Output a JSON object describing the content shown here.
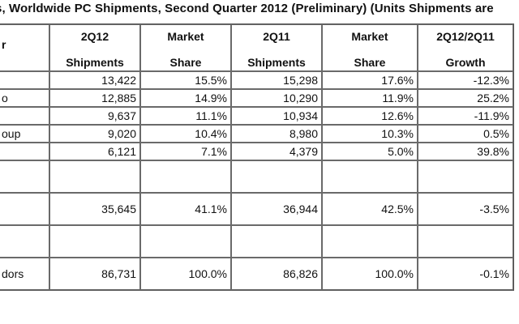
{
  "title": "s, Worldwide PC Shipments, Second Quarter 2012 (Preliminary) (Units Shipments are",
  "table": {
    "header": [
      {
        "top": "",
        "bottom": "r"
      },
      {
        "top": "2Q12",
        "bottom": "Shipments"
      },
      {
        "top": "Market",
        "bottom": "Share"
      },
      {
        "top": "2Q11",
        "bottom": "Shipments"
      },
      {
        "top": "Market",
        "bottom": "Share"
      },
      {
        "top": "2Q12/2Q11",
        "bottom": "Growth"
      }
    ],
    "rows": [
      {
        "vendor": "",
        "q12": "13,422",
        "share12": "15.5%",
        "q11": "15,298",
        "share11": "17.6%",
        "growth": "-12.3%"
      },
      {
        "vendor": "o",
        "q12": "12,885",
        "share12": "14.9%",
        "q11": "10,290",
        "share11": "11.9%",
        "growth": "25.2%"
      },
      {
        "vendor": "",
        "q12": "9,637",
        "share12": "11.1%",
        "q11": "10,934",
        "share11": "12.6%",
        "growth": "-11.9%"
      },
      {
        "vendor": "oup",
        "q12": "9,020",
        "share12": "10.4%",
        "q11": "8,980",
        "share11": "10.3%",
        "growth": "0.5%"
      },
      {
        "vendor": "",
        "q12": "6,121",
        "share12": "7.1%",
        "q11": "4,379",
        "share11": "5.0%",
        "growth": "39.8%"
      },
      {
        "vendor": "",
        "q12": "",
        "share12": "",
        "q11": "",
        "share11": "",
        "growth": ""
      },
      {
        "vendor": "",
        "q12": "35,645",
        "share12": "41.1%",
        "q11": "36,944",
        "share11": "42.5%",
        "growth": "-3.5%"
      },
      {
        "vendor": "",
        "q12": "",
        "share12": "",
        "q11": "",
        "share11": "",
        "growth": ""
      },
      {
        "vendor": "dors",
        "q12": "86,731",
        "share12": "100.0%",
        "q11": "86,826",
        "share11": "100.0%",
        "growth": "-0.1%"
      }
    ]
  }
}
